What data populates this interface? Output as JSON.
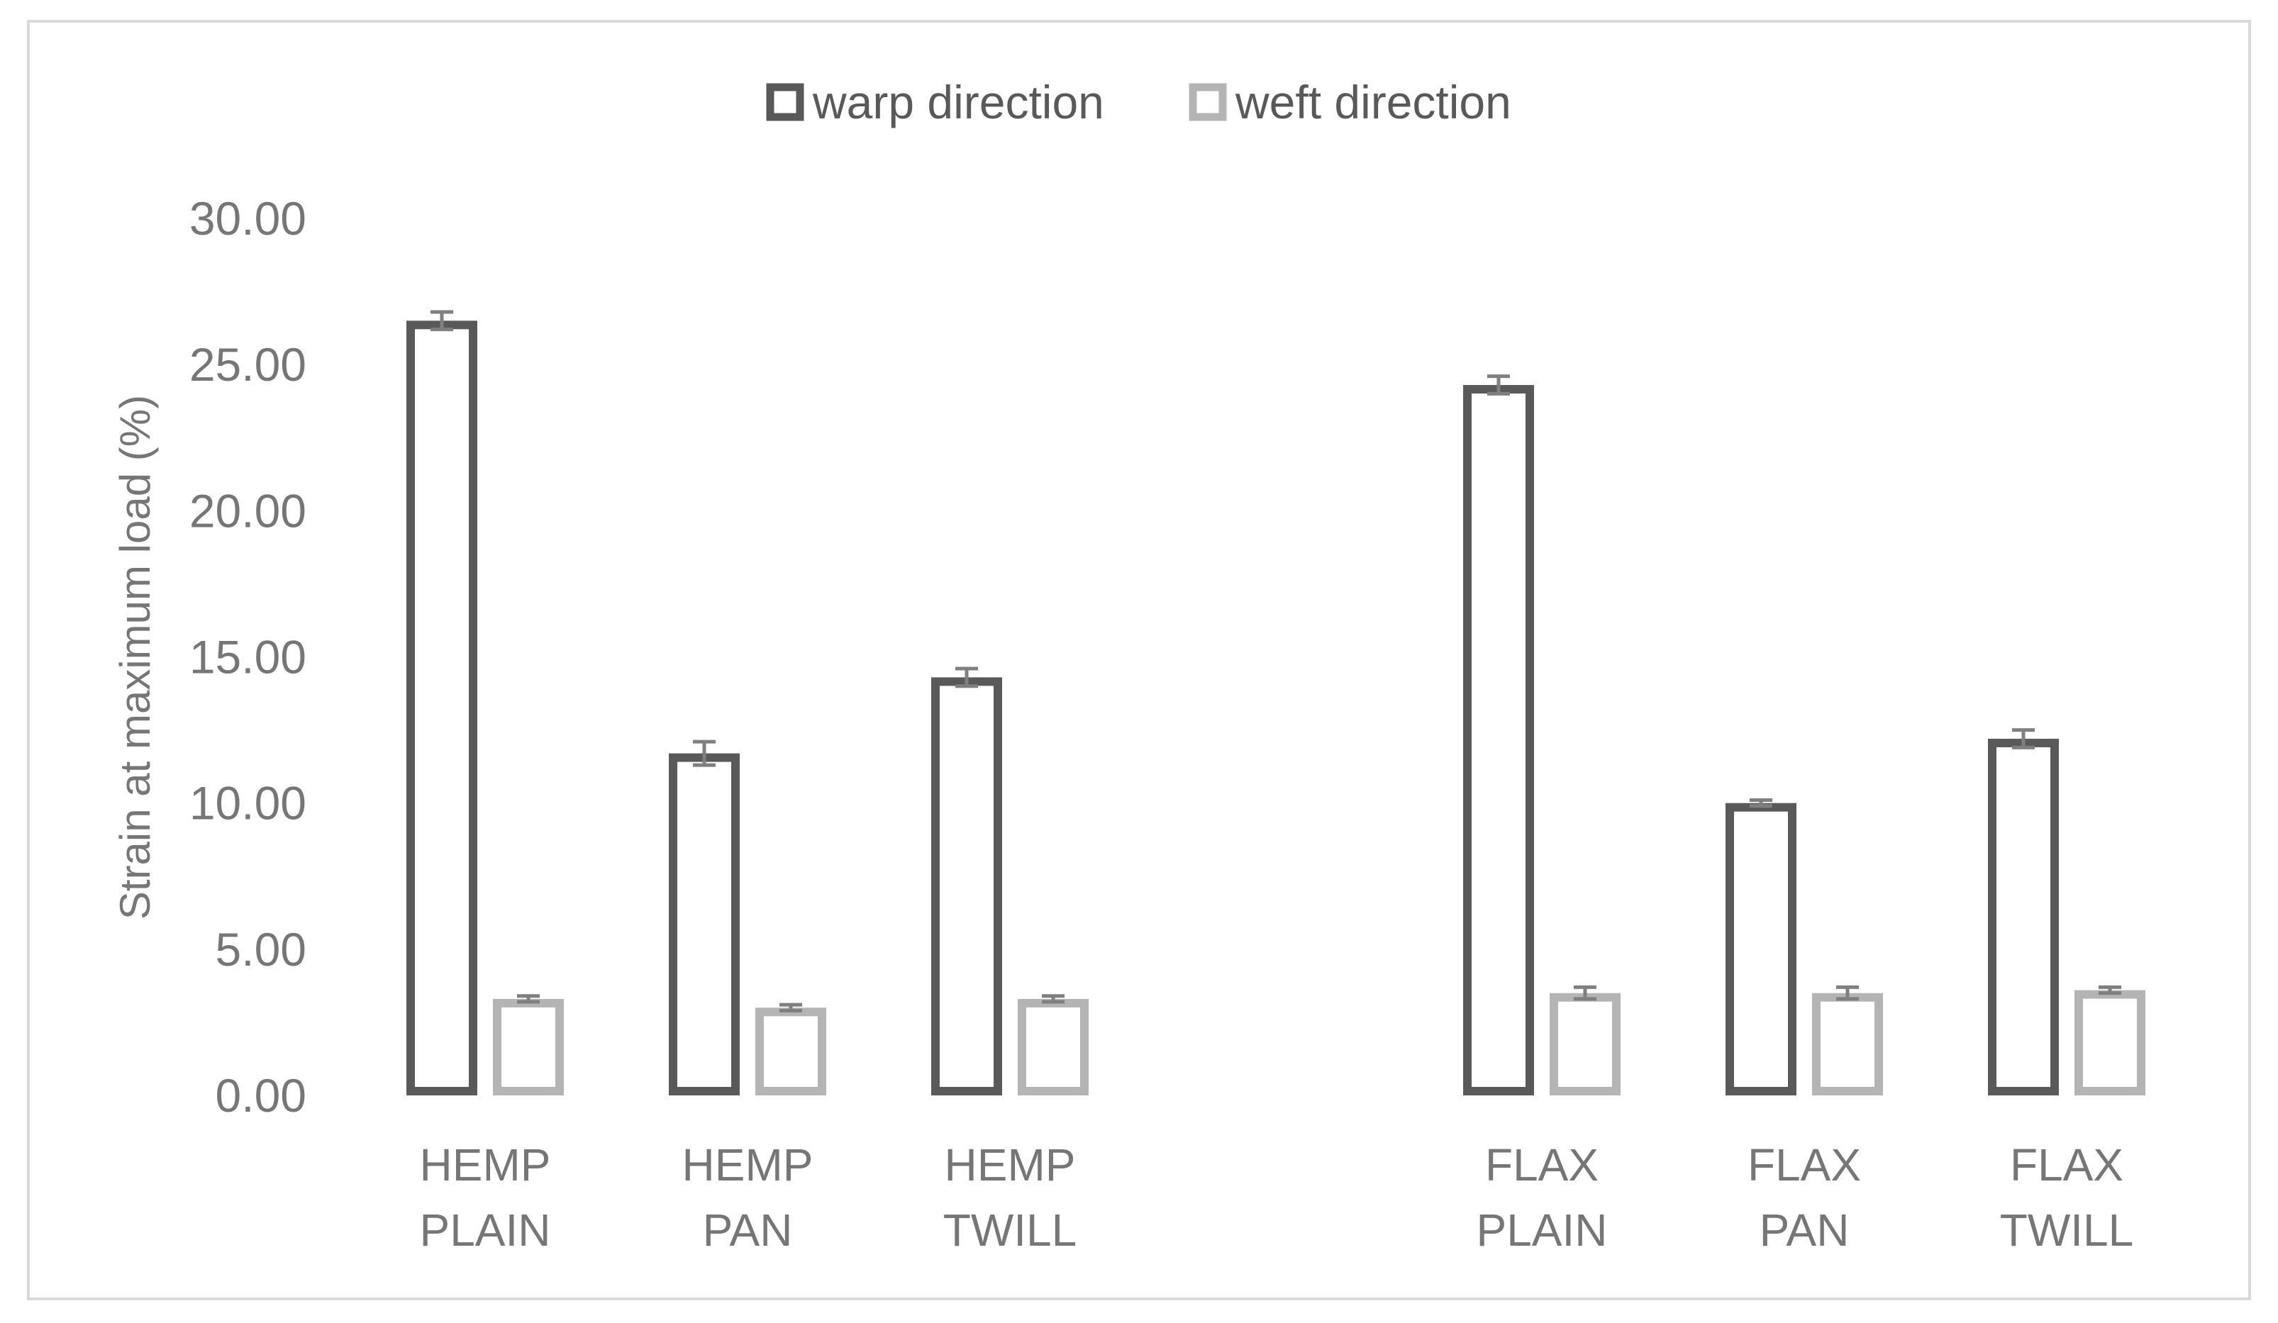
{
  "chart_data": {
    "type": "bar",
    "ylabel": "Strain at maximum load (%)",
    "ylim": [
      0,
      30
    ],
    "yticks": [
      "0.00",
      "5.00",
      "10.00",
      "15.00",
      "20.00",
      "25.00",
      "30.00"
    ],
    "grid": false,
    "legend_position": "top",
    "categories": [
      [
        "HEMP",
        "PLAIN"
      ],
      [
        "HEMP",
        "PAN"
      ],
      [
        "HEMP",
        "TWILL"
      ],
      [
        "FLAX",
        "PLAIN"
      ],
      [
        "FLAX",
        "PAN"
      ],
      [
        "FLAX",
        "TWILL"
      ]
    ],
    "series": [
      {
        "name": "warp direction",
        "color": "#595959",
        "values": [
          26.5,
          11.7,
          14.3,
          24.3,
          10.0,
          12.2
        ],
        "errors": [
          0.3,
          0.4,
          0.3,
          0.3,
          0.1,
          0.3
        ]
      },
      {
        "name": "weft direction",
        "color": "#b4b4b4",
        "values": [
          3.3,
          3.0,
          3.3,
          3.5,
          3.5,
          3.6
        ],
        "errors": [
          0.1,
          0.1,
          0.1,
          0.2,
          0.2,
          0.1
        ]
      }
    ]
  }
}
